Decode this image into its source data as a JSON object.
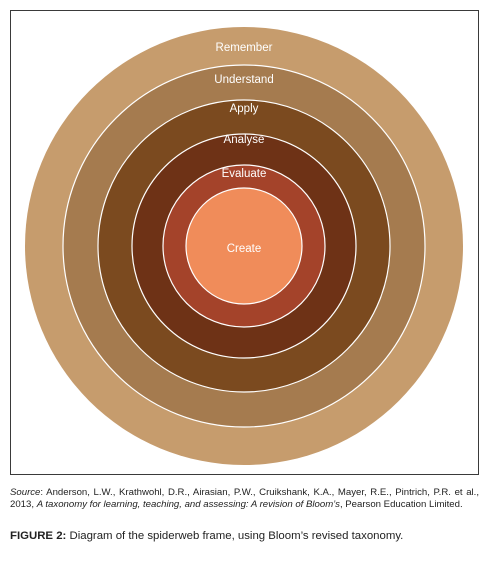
{
  "diagram": {
    "rings": [
      {
        "label": "Remember",
        "color": "#c69c6d"
      },
      {
        "label": "Understand",
        "color": "#a57b4f"
      },
      {
        "label": "Apply",
        "color": "#7b4a1f"
      },
      {
        "label": "Analyse",
        "color": "#6e3216"
      },
      {
        "label": "Evaluate",
        "color": "#a4432a"
      },
      {
        "label": "Create",
        "color": "#f08c5a"
      }
    ],
    "separator_color": "#ffffff"
  },
  "source": {
    "prefix": "Source",
    "text_1": ": Anderson, L.W., Krathwohl, D.R., Airasian, P.W., Cruikshank, K.A., Mayer, R.E., Pintrich, P.R. et al., 2013, ",
    "title": "A taxonomy for learning, teaching, and assessing: A revision of Bloom’s",
    "text_2": ", Pearson Education Limited."
  },
  "caption": {
    "label": "FIGURE 2:",
    "text": " Diagram of the spiderweb frame, using Bloom’s revised taxonomy."
  }
}
